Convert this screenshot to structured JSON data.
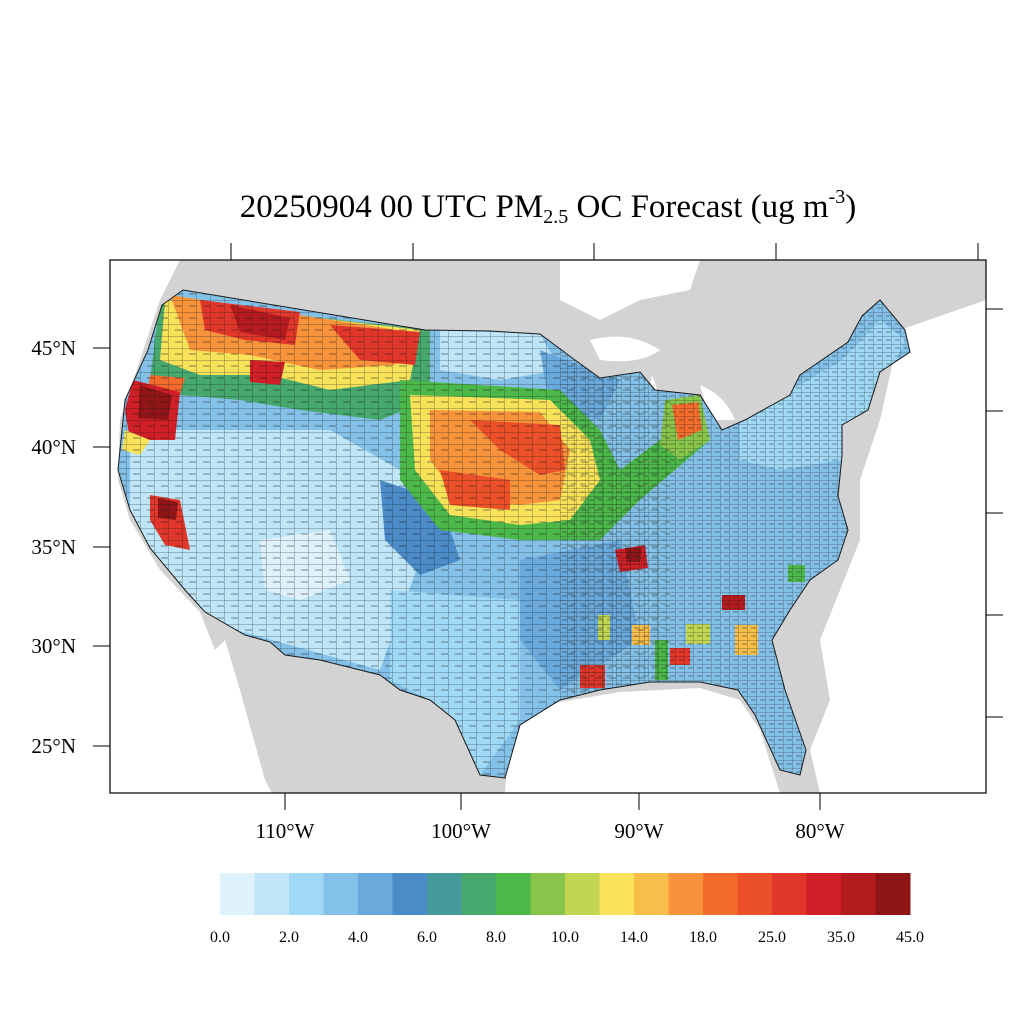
{
  "title": {
    "prefix": "20250904 00 UTC PM",
    "sub": "2.5",
    "mid": " OC Forecast (ug m",
    "sup": "-3",
    "suffix": ")"
  },
  "lat_labels": [
    "45°N",
    "40°N",
    "35°N",
    "30°N",
    "25°N"
  ],
  "lon_labels": [
    "110°W",
    "100°W",
    "90°W",
    "80°W"
  ],
  "colorbar": {
    "colors": [
      "#dff2fb",
      "#bfe6f8",
      "#9fd9f5",
      "#84c1e8",
      "#6aa9dc",
      "#4b8bc8",
      "#479a9c",
      "#47a86e",
      "#4cb84a",
      "#88c54b",
      "#c2d652",
      "#f7e25a",
      "#f7be4a",
      "#f7943b",
      "#f36b2d",
      "#ec5028",
      "#e0372a",
      "#d01f26",
      "#b41b1f",
      "#8f1516"
    ],
    "labels": [
      "0.0",
      "2.0",
      "4.0",
      "6.0",
      "8.0",
      "10.0",
      "14.0",
      "18.0",
      "25.0",
      "35.0",
      "45.0"
    ]
  },
  "colors": {
    "land_background": "#d3d3d3",
    "water": "#ffffff",
    "county_border": "#1a1a1a"
  }
}
